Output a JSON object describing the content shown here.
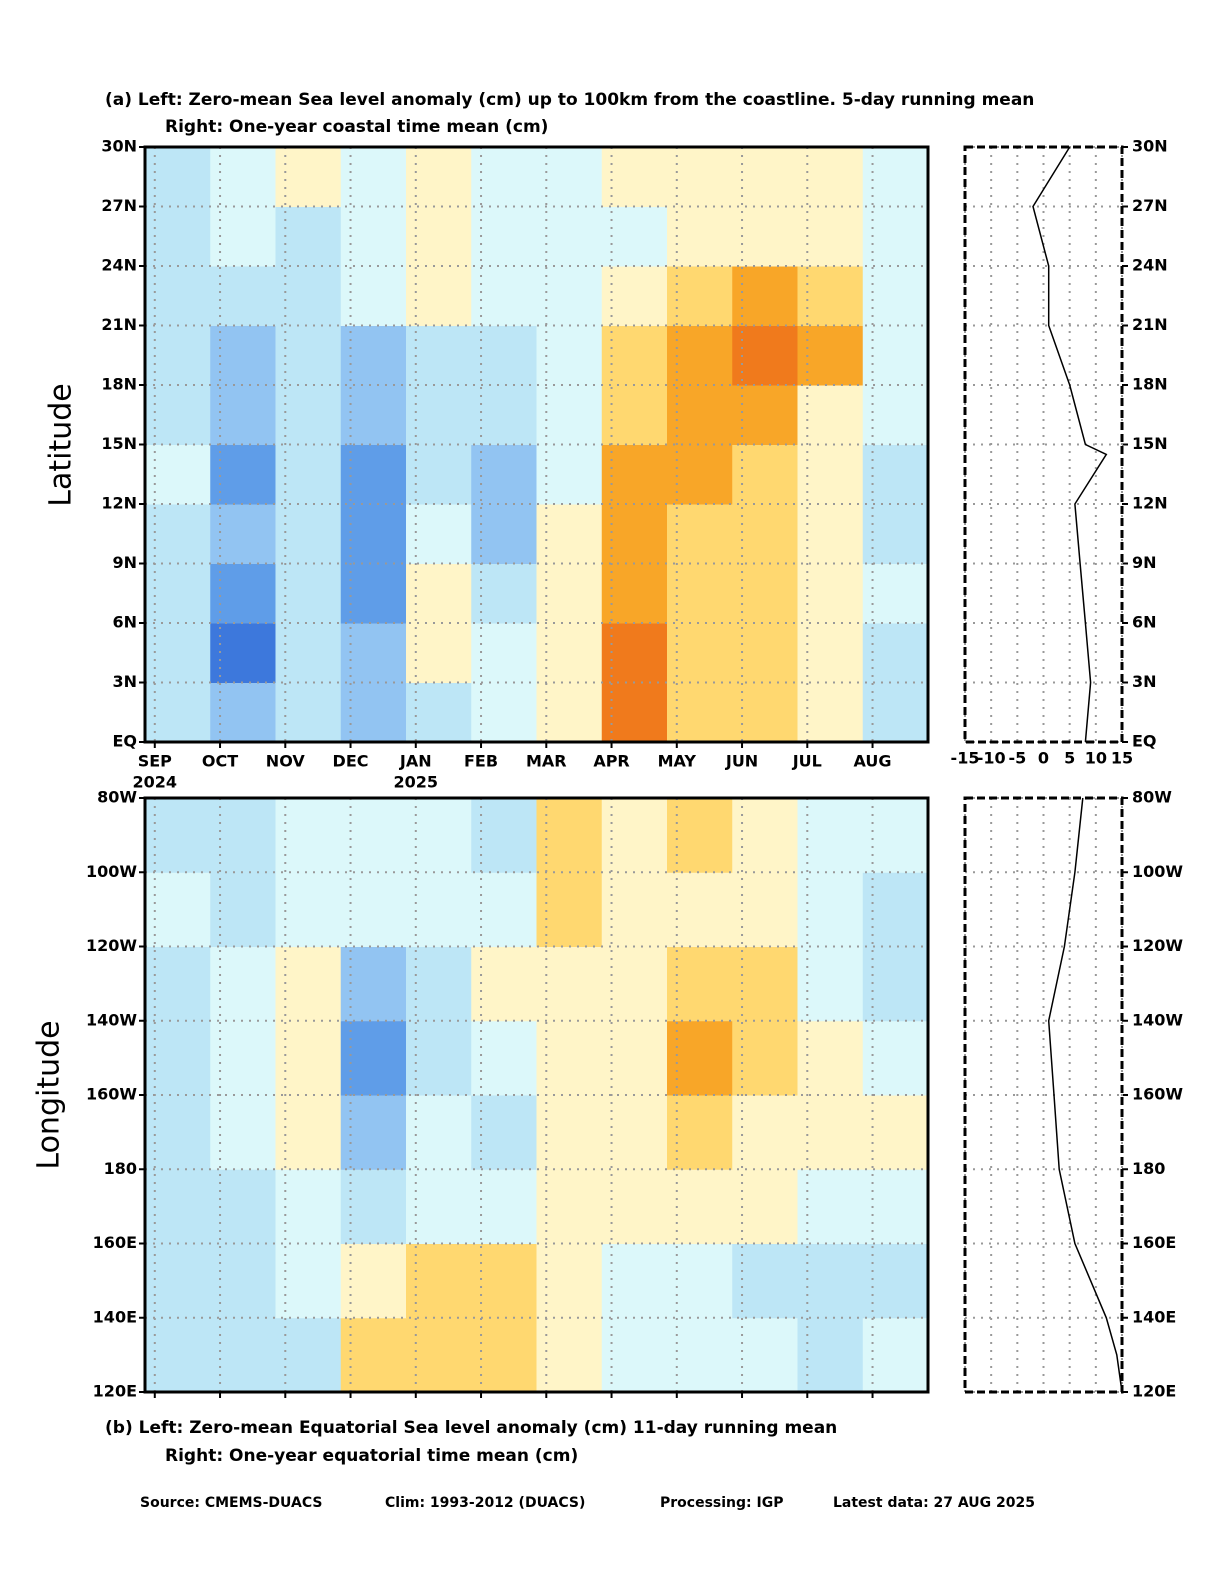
{
  "title_top": [
    "(a)  Left: Zero-mean Sea level anomaly (cm) up to 100km from the coastline. 5-day running mean",
    "Right: One-year coastal time mean (cm)"
  ],
  "title_bottom": [
    "(b)  Left: Zero-mean Equatorial Sea level anomaly (cm) 11-day running mean",
    "Right: One-year equatorial time mean (cm)"
  ],
  "footer": [
    "Source: CMEMS-DUACS",
    "Clim: 1993-2012 (DUACS)",
    "Processing: IGP",
    "Latest data: 27 AUG 2025"
  ],
  "chart_data": [
    {
      "type": "heatmap",
      "ylabel": "Latitude",
      "categories": [
        "SEP",
        "OCT",
        "NOV",
        "DEC",
        "JAN",
        "FEB",
        "MAR",
        "APR",
        "MAY",
        "JUN",
        "JUL",
        "AUG"
      ],
      "year_labels": [
        "2024",
        null,
        null,
        null,
        "2025",
        null,
        null,
        null,
        null,
        null,
        null,
        null
      ],
      "ylim": [
        0,
        30
      ],
      "yticks": [
        {
          "value": 0,
          "label": "EQ"
        },
        {
          "value": 3,
          "label": "3N"
        },
        {
          "value": 6,
          "label": "6N"
        },
        {
          "value": 9,
          "label": "9N"
        },
        {
          "value": 12,
          "label": "12N"
        },
        {
          "value": 15,
          "label": "15N"
        },
        {
          "value": 18,
          "label": "18N"
        },
        {
          "value": 21,
          "label": "21N"
        },
        {
          "value": 24,
          "label": "24N"
        },
        {
          "value": 27,
          "label": "27N"
        },
        {
          "value": 30,
          "label": "30N"
        }
      ],
      "levels": [
        -12,
        -9,
        -6,
        -3,
        0,
        3,
        6,
        9,
        12
      ],
      "colors": [
        "#3d78dc",
        "#5f9de8",
        "#92c4f2",
        "#bde6f6",
        "#dcf8fa",
        "#fff5c8",
        "#ffd870",
        "#f8a628",
        "#f07a1c",
        "#e04414"
      ],
      "grid": true,
      "values": [
        [
          -3,
          -6,
          -3,
          -6,
          -3,
          0,
          3,
          10,
          6,
          6,
          3,
          -3
        ],
        [
          -3,
          -12,
          -3,
          -6,
          3,
          0,
          3,
          10,
          6,
          6,
          3,
          -3
        ],
        [
          -3,
          -9,
          -3,
          -9,
          3,
          -3,
          3,
          9,
          6,
          6,
          3,
          0
        ],
        [
          -3,
          -6,
          -3,
          -9,
          0,
          -6,
          3,
          9,
          6,
          6,
          3,
          -3
        ],
        [
          0,
          -9,
          -3,
          -9,
          -3,
          -6,
          0,
          9,
          9,
          6,
          3,
          -3
        ],
        [
          -3,
          -6,
          -3,
          -6,
          -3,
          -3,
          0,
          6,
          9,
          9,
          3,
          0
        ],
        [
          -3,
          -6,
          -3,
          -6,
          -3,
          -3,
          0,
          6,
          9,
          12,
          9,
          0
        ],
        [
          -3,
          -3,
          -3,
          0,
          3,
          0,
          0,
          3,
          6,
          9,
          6,
          0
        ],
        [
          -3,
          0,
          -3,
          0,
          3,
          0,
          0,
          0,
          3,
          3,
          3,
          0
        ],
        [
          -3,
          0,
          3,
          0,
          3,
          0,
          0,
          3,
          3,
          3,
          3,
          0
        ]
      ]
    },
    {
      "type": "line",
      "xlim": [
        -15,
        15
      ],
      "xticks": [
        -15,
        -10,
        -5,
        0,
        5,
        10,
        15
      ],
      "ylim": [
        0,
        30
      ],
      "y": [
        0,
        3,
        6,
        9,
        12,
        14.5,
        15,
        18,
        21,
        24,
        27,
        30
      ],
      "values": [
        8,
        9,
        8,
        7,
        6,
        12,
        8,
        5,
        1,
        1,
        -2,
        5
      ],
      "grid": true
    },
    {
      "type": "heatmap",
      "ylabel": "Longitude",
      "ylim": [
        120,
        280
      ],
      "yticks": [
        {
          "value": 120,
          "label": "120E"
        },
        {
          "value": 140,
          "label": "140E"
        },
        {
          "value": 160,
          "label": "160E"
        },
        180,
        {
          "value": 200,
          "label": "160W"
        },
        {
          "value": 220,
          "label": "140W"
        },
        {
          "value": 240,
          "label": "120W"
        },
        {
          "value": 260,
          "label": "100W"
        },
        {
          "value": 280,
          "label": "80W"
        }
      ],
      "grid": true,
      "values": [
        [
          -3,
          -3,
          -3,
          6,
          6,
          6,
          3,
          0,
          0,
          0,
          -3,
          0
        ],
        [
          -3,
          -3,
          0,
          3,
          6,
          6,
          3,
          0,
          0,
          -3,
          -3,
          -3
        ],
        [
          -3,
          -3,
          0,
          -3,
          0,
          0,
          3,
          3,
          3,
          3,
          0,
          0
        ],
        [
          -3,
          0,
          3,
          -6,
          0,
          -3,
          3,
          3,
          6,
          3,
          3,
          3
        ],
        [
          -3,
          0,
          3,
          -9,
          -3,
          0,
          3,
          3,
          9,
          6,
          3,
          0
        ],
        [
          -3,
          0,
          3,
          -6,
          -3,
          3,
          3,
          3,
          6,
          6,
          0,
          -3
        ],
        [
          0,
          -3,
          0,
          0,
          0,
          0,
          6,
          3,
          3,
          3,
          0,
          -3
        ],
        [
          -3,
          -3,
          0,
          0,
          0,
          -3,
          6,
          3,
          6,
          3,
          0,
          0
        ]
      ]
    },
    {
      "type": "line",
      "xlim": [
        -15,
        15
      ],
      "ylim": [
        120,
        280
      ],
      "y": [
        120,
        130,
        140,
        160,
        180,
        200,
        220,
        240,
        260,
        280
      ],
      "values": [
        15,
        14,
        12,
        6,
        3,
        2,
        1,
        4,
        6,
        7.5
      ],
      "grid": true
    }
  ]
}
